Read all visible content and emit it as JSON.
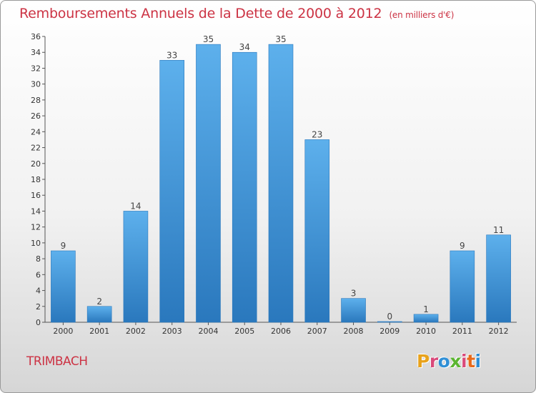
{
  "title": "Remboursements Annuels de la Dette de 2000 à 2012",
  "subtitle": "(en milliers d'€)",
  "city": "TRIMBACH",
  "logo": {
    "letters": [
      "P",
      "r",
      "o",
      "x",
      "i",
      "t",
      "i"
    ],
    "colors": [
      "#e8a21b",
      "#d94a7a",
      "#2f8fd6",
      "#5bb531",
      "#d94a7a",
      "#e86a1b",
      "#2f8fd6"
    ]
  },
  "colors": {
    "bar": "#3b93d8",
    "bar_light": "#5db0ec",
    "bar_dark": "#2a78bd",
    "title": "#cc3344"
  },
  "chart_data": {
    "type": "bar",
    "categories": [
      "2000",
      "2001",
      "2002",
      "2003",
      "2004",
      "2005",
      "2006",
      "2007",
      "2008",
      "2009",
      "2010",
      "2011",
      "2012"
    ],
    "values": [
      9,
      2,
      14,
      33,
      35,
      34,
      35,
      23,
      3,
      0,
      1,
      9,
      11
    ],
    "ylim": [
      0,
      36
    ],
    "yticks": [
      0,
      2,
      4,
      6,
      8,
      10,
      12,
      14,
      16,
      18,
      20,
      22,
      24,
      26,
      28,
      30,
      32,
      34,
      36
    ],
    "grid": false,
    "data_labels": true
  }
}
